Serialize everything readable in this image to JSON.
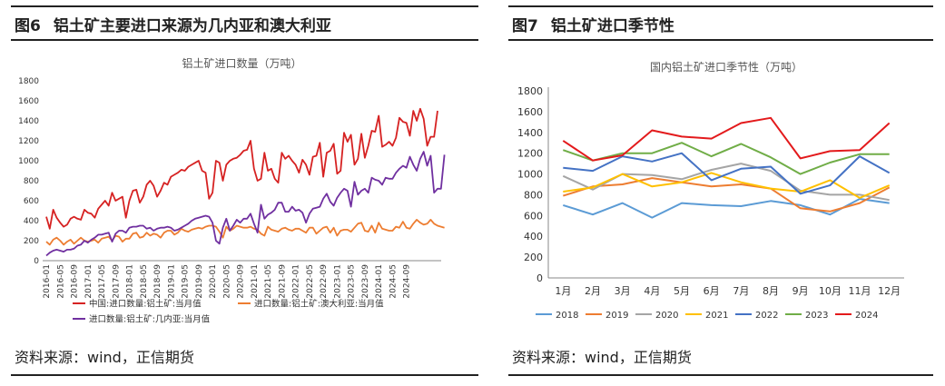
{
  "left": {
    "fig_label": "图6",
    "fig_title": "铝土矿主要进口来源为几内亚和澳大利亚",
    "source": "资料来源：wind，正信期货",
    "chart_data": {
      "type": "line",
      "title": "铝土矿进口数量（万吨）",
      "ylim": [
        0,
        1800
      ],
      "yticks": [
        0,
        200,
        400,
        600,
        800,
        1000,
        1200,
        1400,
        1600,
        1800
      ],
      "xticks": [
        "2016-01",
        "2016-05",
        "2016-09",
        "2017-01",
        "2017-05",
        "2017-09",
        "2018-01",
        "2018-05",
        "2018-09",
        "2019-01",
        "2019-05",
        "2019-09",
        "2020-01",
        "2020-05",
        "2020-09",
        "2021-01",
        "2021-05",
        "2021-09",
        "2022-01",
        "2022-05",
        "2022-09",
        "2023-01",
        "2023-05",
        "2023-09",
        "2024-01",
        "2024-05",
        "2024-09"
      ],
      "series": [
        {
          "name": "中国:进口数量:铝土矿:当月值",
          "color": "#d62222",
          "values": [
            440,
            320,
            510,
            430,
            380,
            340,
            360,
            420,
            440,
            420,
            410,
            510,
            480,
            470,
            430,
            520,
            560,
            600,
            550,
            680,
            600,
            620,
            640,
            430,
            600,
            700,
            710,
            580,
            640,
            760,
            800,
            750,
            640,
            700,
            780,
            760,
            840,
            860,
            880,
            910,
            900,
            940,
            960,
            980,
            1000,
            900,
            880,
            620,
            680,
            1000,
            980,
            800,
            960,
            1000,
            1020,
            1030,
            1060,
            1100,
            1110,
            1200,
            920,
            800,
            820,
            1080,
            900,
            920,
            820,
            780,
            1080,
            1020,
            1050,
            1000,
            960,
            880,
            1010,
            960,
            860,
            1040,
            1050,
            1180,
            840,
            1080,
            1100,
            1170,
            870,
            900,
            1280,
            1190,
            1260,
            960,
            1020,
            1270,
            1030,
            1150,
            1300,
            1290,
            1450,
            1140,
            1160,
            1190,
            1150,
            1230,
            1430,
            1390,
            1380,
            1250,
            1500,
            1400,
            1520,
            1420,
            1150,
            1240,
            1240,
            1500
          ]
        },
        {
          "name": "进口数量:铝土矿:澳大利亚:当月值",
          "color": "#ed7d31",
          "values": [
            190,
            160,
            210,
            230,
            200,
            160,
            190,
            210,
            170,
            200,
            230,
            200,
            190,
            200,
            210,
            180,
            220,
            230,
            240,
            200,
            250,
            240,
            190,
            220,
            220,
            270,
            280,
            230,
            240,
            280,
            250,
            270,
            260,
            230,
            280,
            300,
            300,
            260,
            280,
            320,
            300,
            290,
            310,
            320,
            330,
            320,
            340,
            350,
            350,
            340,
            290,
            230,
            340,
            300,
            320,
            350,
            340,
            330,
            330,
            340,
            320,
            310,
            270,
            250,
            340,
            310,
            300,
            290,
            320,
            330,
            310,
            300,
            320,
            320,
            300,
            280,
            330,
            330,
            270,
            300,
            330,
            340,
            280,
            330,
            250,
            300,
            310,
            310,
            290,
            330,
            370,
            380,
            300,
            290,
            350,
            280,
            380,
            320,
            310,
            300,
            300,
            340,
            330,
            390,
            330,
            320,
            370,
            410,
            380,
            360,
            370,
            410,
            370,
            350,
            340,
            330
          ]
        },
        {
          "name": "进口数量:铝土矿:几内亚:当月值",
          "color": "#7030a0",
          "values": [
            50,
            80,
            100,
            110,
            100,
            90,
            110,
            110,
            120,
            150,
            160,
            200,
            180,
            210,
            230,
            260,
            260,
            270,
            280,
            190,
            270,
            300,
            300,
            280,
            330,
            340,
            340,
            350,
            350,
            320,
            330,
            300,
            320,
            330,
            330,
            340,
            330,
            300,
            310,
            330,
            350,
            370,
            400,
            420,
            430,
            440,
            450,
            440,
            380,
            200,
            170,
            330,
            420,
            300,
            350,
            410,
            380,
            420,
            420,
            470,
            370,
            280,
            560,
            420,
            460,
            480,
            510,
            580,
            580,
            490,
            490,
            540,
            500,
            510,
            480,
            380,
            470,
            520,
            530,
            540,
            620,
            670,
            590,
            550,
            630,
            680,
            720,
            700,
            540,
            790,
            660,
            700,
            720,
            680,
            830,
            810,
            800,
            760,
            830,
            820,
            820,
            880,
            920,
            950,
            930,
            1040,
            960,
            900,
            1020,
            1090,
            950,
            1050,
            680,
            720,
            720,
            1060
          ]
        }
      ]
    }
  },
  "right": {
    "fig_label": "图7",
    "fig_title": "铝土矿进口季节性",
    "source": "资料来源：wind，正信期货",
    "chart_data": {
      "type": "line",
      "title": "国内铝土矿进口季节性（万吨）",
      "ylim": [
        0,
        1800
      ],
      "yticks": [
        0,
        200,
        400,
        600,
        800,
        1000,
        1200,
        1400,
        1600,
        1800
      ],
      "categories": [
        "1月",
        "2月",
        "3月",
        "4月",
        "5月",
        "6月",
        "7月",
        "8月",
        "9月",
        "10月",
        "11月",
        "12月"
      ],
      "series": [
        {
          "name": "2018",
          "color": "#5b9bd5",
          "values": [
            700,
            610,
            720,
            580,
            720,
            700,
            690,
            740,
            700,
            610,
            760,
            720
          ]
        },
        {
          "name": "2019",
          "color": "#ed7d31",
          "values": [
            790,
            880,
            900,
            960,
            920,
            880,
            900,
            860,
            670,
            640,
            720,
            870
          ]
        },
        {
          "name": "2020",
          "color": "#a5a5a5",
          "values": [
            980,
            850,
            1000,
            990,
            950,
            1040,
            1100,
            1030,
            840,
            800,
            800,
            750
          ]
        },
        {
          "name": "2021",
          "color": "#ffc000",
          "values": [
            830,
            870,
            1000,
            880,
            920,
            1010,
            920,
            860,
            830,
            940,
            770,
            890
          ]
        },
        {
          "name": "2022",
          "color": "#4472c4",
          "values": [
            1060,
            1030,
            1170,
            1120,
            1200,
            940,
            1050,
            1070,
            810,
            890,
            1170,
            1010
          ]
        },
        {
          "name": "2023",
          "color": "#70ad47",
          "values": [
            1230,
            1130,
            1200,
            1200,
            1300,
            1170,
            1290,
            1160,
            1000,
            1110,
            1190,
            1190
          ]
        },
        {
          "name": "2024",
          "color": "#e31a1c",
          "values": [
            1320,
            1130,
            1180,
            1420,
            1360,
            1340,
            1490,
            1540,
            1150,
            1220,
            1230,
            1490
          ]
        }
      ]
    }
  }
}
